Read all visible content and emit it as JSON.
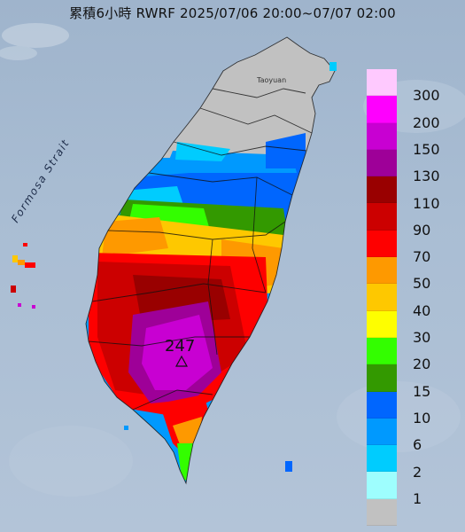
{
  "title": "累積6小時 RWRF 2025/07/06 20:00~07/07 02:00",
  "map": {
    "sea_label": "Formosa Strait",
    "city_label": "Taoyuan",
    "max_value": "247"
  },
  "legend": {
    "levels": [
      {
        "label": "300",
        "color": "#fec9fe"
      },
      {
        "label": "200",
        "color": "#fe00fe"
      },
      {
        "label": "150",
        "color": "#c800d2"
      },
      {
        "label": "130",
        "color": "#9e0098"
      },
      {
        "label": "110",
        "color": "#990000"
      },
      {
        "label": "90",
        "color": "#cc0000"
      },
      {
        "label": "70",
        "color": "#fe0000"
      },
      {
        "label": "50",
        "color": "#fe9900"
      },
      {
        "label": "40",
        "color": "#fec800"
      },
      {
        "label": "30",
        "color": "#fefe00"
      },
      {
        "label": "20",
        "color": "#33fe00"
      },
      {
        "label": "15",
        "color": "#339900"
      },
      {
        "label": "10",
        "color": "#0066fe"
      },
      {
        "label": "6",
        "color": "#0099fe"
      },
      {
        "label": "2",
        "color": "#00ccfe"
      },
      {
        "label": "1",
        "color": "#9efefe"
      },
      {
        "label": "",
        "color": "#c1c1c1"
      }
    ],
    "visible_labels": [
      "300",
      "200",
      "150",
      "130",
      "110",
      "90",
      "70",
      "50",
      "40",
      "30",
      "20",
      "15",
      "10",
      "6",
      "2",
      "1"
    ]
  }
}
